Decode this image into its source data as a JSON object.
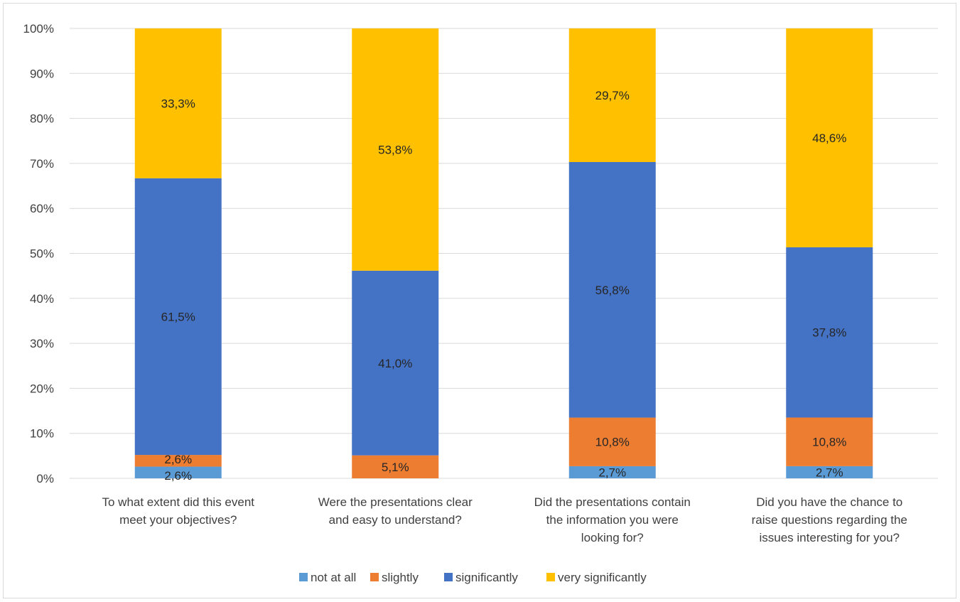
{
  "chart_data": {
    "type": "bar",
    "stacked": true,
    "percent_scale": true,
    "categories": [
      [
        "To what extent did this event",
        "meet your objectives?"
      ],
      [
        "Were the presentations clear",
        "and easy to understand?"
      ],
      [
        "Did the presentations contain",
        "the information you were",
        "looking for?"
      ],
      [
        "Did you have the chance to",
        "raise questions regarding the",
        "issues interesting for you?"
      ]
    ],
    "series": [
      {
        "name": "not at all",
        "color": "#5b9bd5",
        "values": [
          2.6,
          0,
          2.7,
          2.7
        ],
        "labels": [
          "2,6%",
          "",
          "2,7%",
          "2,7%"
        ]
      },
      {
        "name": "slightly",
        "color": "#ed7d31",
        "values": [
          2.6,
          5.1,
          10.8,
          10.8
        ],
        "labels": [
          "2,6%",
          "5,1%",
          "10,8%",
          "10,8%"
        ]
      },
      {
        "name": "significantly",
        "color": "#4472c4",
        "values": [
          61.5,
          41.0,
          56.8,
          37.8
        ],
        "labels": [
          "61,5%",
          "41,0%",
          "56,8%",
          "37,8%"
        ]
      },
      {
        "name": "very significantly",
        "color": "#ffc000",
        "values": [
          33.3,
          53.8,
          29.7,
          48.6
        ],
        "labels": [
          "33,3%",
          "53,8%",
          "29,7%",
          "48,6%"
        ]
      }
    ],
    "ylim": [
      0,
      100
    ],
    "yticks": [
      "0%",
      "10%",
      "20%",
      "30%",
      "40%",
      "50%",
      "60%",
      "70%",
      "80%",
      "90%",
      "100%"
    ],
    "grid": true,
    "legend_position": "bottom"
  }
}
